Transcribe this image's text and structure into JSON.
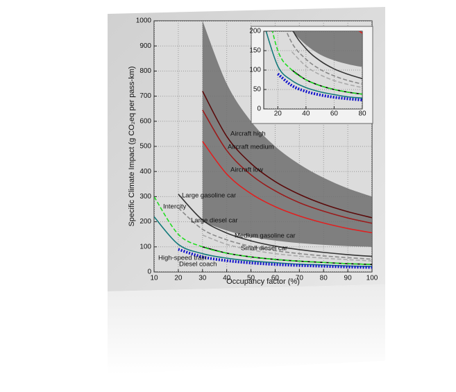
{
  "chart_data": {
    "type": "line",
    "x_label": "Occupancy factor (%)",
    "y_label": "Specific Climate Impact (g CO₂eq per pass-km)",
    "xlim": [
      10,
      100
    ],
    "ylim": [
      0,
      1000
    ],
    "xticks": [
      10,
      20,
      30,
      40,
      50,
      60,
      70,
      80,
      90,
      100
    ],
    "yticks": [
      0,
      100,
      200,
      300,
      400,
      500,
      600,
      700,
      800,
      900,
      1000
    ],
    "grid": true,
    "x": [
      10,
      20,
      30,
      40,
      50,
      60,
      70,
      80,
      90,
      100
    ],
    "band": {
      "color": "#6e6e6e",
      "upper": [
        null,
        null,
        1000,
        750,
        600,
        500,
        429,
        375,
        333,
        300
      ],
      "lower": [
        null,
        null,
        200,
        165,
        140,
        125,
        115,
        108,
        103,
        100
      ]
    },
    "series": [
      {
        "name": "Aircraft high",
        "color": "#5a0a0a",
        "style": "solid",
        "values": [
          null,
          null,
          720,
          540,
          432,
          360,
          309,
          270,
          240,
          216
        ]
      },
      {
        "name": "Aircraft medium",
        "color": "#9b1b1b",
        "style": "solid",
        "values": [
          null,
          null,
          645,
          484,
          387,
          323,
          276,
          242,
          215,
          194
        ]
      },
      {
        "name": "Aircraft low",
        "color": "#e02020",
        "style": "solid",
        "values": [
          null,
          null,
          520,
          390,
          312,
          260,
          223,
          195,
          173,
          156
        ]
      },
      {
        "name": "Large gasoline car",
        "color": "#333333",
        "style": "solid",
        "values": [
          null,
          310,
          207,
          155,
          124,
          103,
          89,
          78,
          69,
          62
        ]
      },
      {
        "name": "Large diesel car",
        "color": "#888888",
        "style": "dashed",
        "values": [
          null,
          255,
          170,
          128,
          102,
          85,
          73,
          64,
          57,
          51
        ]
      },
      {
        "name": "Medium gasoline car",
        "color": "#aaaaaa",
        "style": "dashed",
        "values": [
          null,
          null,
          147,
          110,
          88,
          73,
          63,
          55,
          49,
          44
        ]
      },
      {
        "name": "Small diesel car",
        "color": "#000000",
        "style": "solid",
        "values": [
          null,
          null,
          100,
          75,
          60,
          50,
          43,
          38,
          33,
          30
        ]
      },
      {
        "name": "Intercity",
        "color": "#22dd22",
        "style": "dashed",
        "values": [
          300,
          150,
          100,
          75,
          60,
          50,
          43,
          38,
          33,
          30
        ]
      },
      {
        "name": "High-speed train",
        "color": "#137a7a",
        "style": "solid",
        "values": [
          220,
          110,
          73,
          55,
          44,
          37,
          31,
          28,
          24,
          22
        ]
      },
      {
        "name": "Diesel coach",
        "color": "#1010cc",
        "style": "dotted",
        "values": [
          null,
          90,
          60,
          45,
          36,
          30,
          26,
          23,
          20,
          18
        ]
      }
    ],
    "inset": {
      "xlim": [
        10,
        80
      ],
      "ylim": [
        0,
        200
      ],
      "xticks": [
        20,
        40,
        60,
        80
      ],
      "yticks": [
        0,
        50,
        100,
        150,
        200
      ]
    }
  }
}
